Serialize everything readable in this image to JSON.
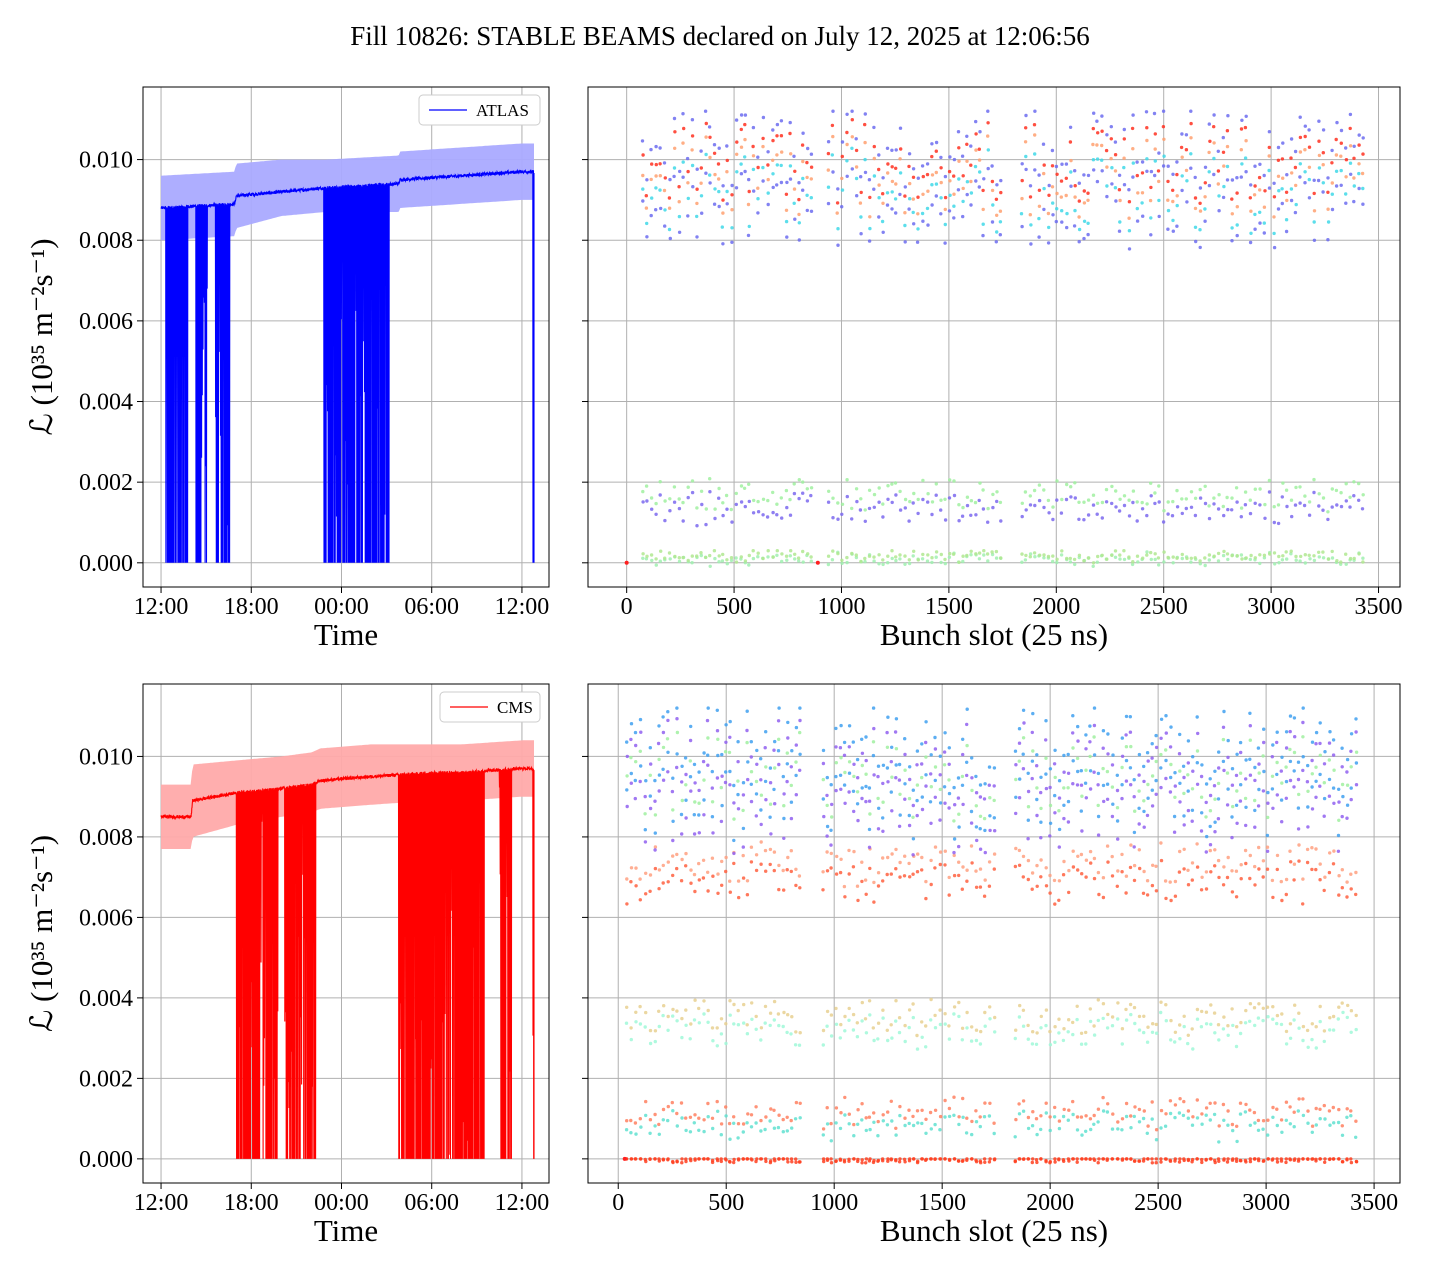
{
  "figure": {
    "title": "Fill 10826: STABLE BEAMS declared on July 12, 2025 at 12:06:56"
  },
  "colors": {
    "atlas": "#0000ff",
    "atlas_band": "#aaaaff",
    "cms": "#ff0000",
    "cms_band": "#ffaaaa",
    "grid": "#b0b0b0",
    "text": "#000000"
  },
  "chart_data": [
    {
      "type": "line",
      "panel": "top-left",
      "xlabel": "Time",
      "ylabel": "ℒ (10³⁵ m⁻²s⁻¹)",
      "x_tick_labels": [
        "12:00",
        "18:00",
        "00:00",
        "06:00",
        "12:00"
      ],
      "x_ticks_hours": [
        0,
        6,
        12,
        18,
        24
      ],
      "xlim_hours": [
        -1.2,
        25.8
      ],
      "y_ticks": [
        0.0,
        0.002,
        0.004,
        0.006,
        0.008,
        0.01
      ],
      "y_tick_labels": [
        "0.000",
        "0.002",
        "0.004",
        "0.006",
        "0.008",
        "0.010"
      ],
      "ylim": [
        -0.0006,
        0.0118
      ],
      "grid": true,
      "legend": {
        "position": "top-right",
        "entries": [
          "ATLAS"
        ]
      },
      "series": [
        {
          "name": "ATLAS",
          "color": "#0000ff",
          "mean_x_hours": [
            0.0,
            4.9,
            5.0,
            8.0,
            10.9,
            11.0,
            15.8,
            15.9,
            24.0,
            24.8
          ],
          "mean_y": [
            0.0088,
            0.0089,
            0.0091,
            0.0092,
            0.0093,
            0.0093,
            0.0094,
            0.0095,
            0.0097,
            0.0097
          ],
          "band_upper": [
            0.0096,
            0.0097,
            0.0099,
            0.01,
            0.01,
            0.01,
            0.0101,
            0.0102,
            0.0104,
            0.0104
          ],
          "band_lower": [
            0.008,
            0.0081,
            0.0083,
            0.0086,
            0.0087,
            0.0087,
            0.0087,
            0.0088,
            0.009,
            0.009
          ],
          "dropout_windows_hours": [
            [
              0.3,
              1.8
            ],
            [
              2.3,
              3.1
            ],
            [
              3.6,
              4.6
            ],
            [
              10.8,
              15.2
            ],
            [
              24.7,
              24.8
            ]
          ]
        }
      ]
    },
    {
      "type": "scatter",
      "panel": "top-right",
      "xlabel": "Bunch slot (25 ns)",
      "ylabel": "",
      "x_ticks": [
        0,
        500,
        1000,
        1500,
        2000,
        2500,
        3000,
        3500
      ],
      "x_tick_labels": [
        "0",
        "500",
        "1000",
        "1500",
        "2000",
        "2500",
        "3000",
        "3500"
      ],
      "xlim": [
        -180,
        3600
      ],
      "ylim": [
        -0.0006,
        0.0118
      ],
      "grid": true,
      "trains": [
        [
          75,
          860
        ],
        [
          940,
          1740
        ],
        [
          1840,
          3430
        ]
      ],
      "levels": [
        {
          "y": [
            0.0078,
            0.0112
          ],
          "colors": [
            "#6c6cf0",
            "#40d8e8",
            "#ffa070",
            "#ff3020"
          ]
        },
        {
          "y": [
            0.001,
            0.0022
          ],
          "colors": [
            "#7b68ee",
            "#a0f0a0"
          ]
        },
        {
          "y": [
            0.0,
            0.0003
          ],
          "colors": [
            "#a0f0b0",
            "#b0e890"
          ]
        }
      ],
      "isolated_points": [
        {
          "x": 0,
          "y": 0.0
        },
        {
          "x": 890,
          "y": 0.0
        }
      ]
    },
    {
      "type": "line",
      "panel": "bottom-left",
      "xlabel": "Time",
      "ylabel": "ℒ (10³⁵ m⁻²s⁻¹)",
      "x_tick_labels": [
        "12:00",
        "18:00",
        "00:00",
        "06:00",
        "12:00"
      ],
      "x_ticks_hours": [
        0,
        6,
        12,
        18,
        24
      ],
      "xlim_hours": [
        -1.2,
        25.8
      ],
      "y_ticks": [
        0.0,
        0.002,
        0.004,
        0.006,
        0.008,
        0.01
      ],
      "y_tick_labels": [
        "0.000",
        "0.002",
        "0.004",
        "0.006",
        "0.008",
        "0.010"
      ],
      "ylim": [
        -0.0006,
        0.0118
      ],
      "grid": true,
      "legend": {
        "position": "top-right",
        "entries": [
          "CMS"
        ]
      },
      "series": [
        {
          "name": "CMS",
          "color": "#ff0000",
          "mean_x_hours": [
            0.0,
            2.0,
            2.1,
            5.0,
            8.0,
            10.0,
            10.6,
            14.0,
            18.0,
            20.0,
            24.0,
            24.8
          ],
          "mean_y": [
            0.0085,
            0.0085,
            0.0089,
            0.0091,
            0.0092,
            0.0093,
            0.0094,
            0.0095,
            0.0096,
            0.0096,
            0.0097,
            0.0097
          ],
          "band_upper": [
            0.0093,
            0.0093,
            0.0098,
            0.0099,
            0.01,
            0.0101,
            0.0102,
            0.0103,
            0.0103,
            0.0103,
            0.0104,
            0.0104
          ],
          "band_lower": [
            0.0077,
            0.0077,
            0.008,
            0.0083,
            0.0085,
            0.0086,
            0.0087,
            0.0088,
            0.0089,
            0.0089,
            0.009,
            0.009
          ],
          "dropout_windows_hours": [
            [
              5.0,
              7.8
            ],
            [
              8.2,
              10.3
            ],
            [
              15.8,
              21.5
            ],
            [
              22.5,
              23.3
            ],
            [
              24.7,
              24.8
            ]
          ]
        }
      ]
    },
    {
      "type": "scatter",
      "panel": "bottom-right",
      "xlabel": "Bunch slot (25 ns)",
      "ylabel": "",
      "x_ticks": [
        0,
        500,
        1000,
        1500,
        2000,
        2500,
        3000,
        3500
      ],
      "x_tick_labels": [
        "0",
        "500",
        "1000",
        "1500",
        "2000",
        "2500",
        "3000",
        "3500"
      ],
      "xlim": [
        -140,
        3620
      ],
      "ylim": [
        -0.0006,
        0.0118
      ],
      "grid": true,
      "trains": [
        [
          40,
          860
        ],
        [
          950,
          1750
        ],
        [
          1840,
          3430
        ]
      ],
      "levels": [
        {
          "y": [
            0.0064,
            0.008
          ],
          "colors": [
            "#ff6040",
            "#ffa080"
          ]
        },
        {
          "y": [
            0.0076,
            0.0112
          ],
          "colors": [
            "#9060f0",
            "#40a0f0",
            "#a0f0a0"
          ]
        },
        {
          "y": [
            0.0028,
            0.0041
          ],
          "colors": [
            "#a0f8d8",
            "#e8d090"
          ]
        },
        {
          "y": [
            0.0005,
            0.0016
          ],
          "colors": [
            "#60e0d0",
            "#ff8060"
          ]
        },
        {
          "y": [
            0.0,
            0.0
          ],
          "colors": [
            "#ff4020"
          ]
        }
      ],
      "isolated_points": [
        {
          "x": 30,
          "y": 0.0
        }
      ]
    }
  ]
}
